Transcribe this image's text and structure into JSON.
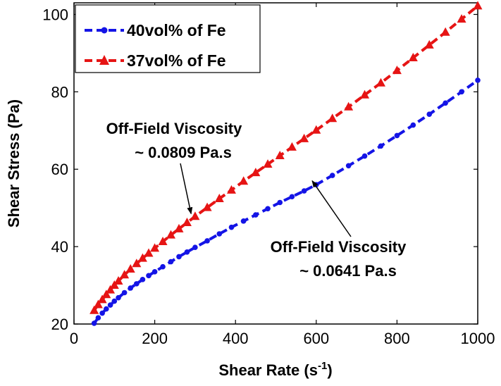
{
  "chart_data": {
    "type": "line",
    "title": "",
    "xlabel": "Shear Rate (s",
    "xlabel_sup": "-1",
    "xlabel_end": ")",
    "ylabel": "Shear Stress (Pa)",
    "xlim": [
      0,
      1000
    ],
    "ylim": [
      20,
      103
    ],
    "xticks": [
      "0",
      "200",
      "400",
      "600",
      "800",
      "1000"
    ],
    "yticks": [
      "20",
      "40",
      "60",
      "80",
      "100"
    ],
    "grid": false,
    "legend_position": "top-left",
    "series": [
      {
        "name": "40vol% of Fe",
        "color": "#1414e6",
        "marker": "dot",
        "x": [
          50,
          60,
          70,
          80,
          90,
          100,
          110,
          125,
          140,
          155,
          170,
          185,
          200,
          220,
          240,
          260,
          280,
          300,
          330,
          360,
          390,
          420,
          450,
          480,
          510,
          540,
          570,
          600,
          640,
          680,
          720,
          760,
          800,
          840,
          880,
          920,
          960,
          1000
        ],
        "values": [
          20.2,
          21.6,
          22.8,
          23.9,
          24.9,
          25.9,
          26.8,
          28.1,
          29.3,
          30.4,
          31.5,
          32.5,
          33.5,
          34.8,
          36.1,
          37.4,
          38.6,
          39.8,
          41.5,
          43.3,
          45.0,
          46.6,
          48.2,
          49.8,
          51.4,
          52.9,
          54.4,
          56.0,
          58.4,
          60.9,
          63.4,
          66.0,
          68.7,
          71.4,
          74.2,
          77.1,
          80.0,
          83.0
        ]
      },
      {
        "name": "37vol% of Fe",
        "color": "#e61414",
        "marker": "triangle",
        "x": [
          50,
          60,
          70,
          80,
          90,
          100,
          110,
          125,
          140,
          155,
          170,
          185,
          200,
          220,
          240,
          260,
          280,
          300,
          330,
          360,
          390,
          420,
          450,
          480,
          510,
          540,
          570,
          600,
          640,
          680,
          720,
          760,
          800,
          840,
          880,
          920,
          960,
          1000
        ],
        "values": [
          23.5,
          25.0,
          26.3,
          27.6,
          28.8,
          30.0,
          31.1,
          32.7,
          34.2,
          35.6,
          37.0,
          38.3,
          39.6,
          41.3,
          43.0,
          44.6,
          46.2,
          47.8,
          50.1,
          52.4,
          54.6,
          56.9,
          59.1,
          61.3,
          63.5,
          65.7,
          67.9,
          70.1,
          73.1,
          76.1,
          79.2,
          82.3,
          85.5,
          88.8,
          92.1,
          95.4,
          98.8,
          102.2
        ]
      }
    ],
    "annotations": [
      {
        "line1": "Off-Field Viscosity",
        "line2": "~ 0.0809 Pa.s",
        "target_x": 290,
        "target_y": 48.5
      },
      {
        "line1": "Off-Field Viscosity",
        "line2": "~ 0.0641 Pa.s",
        "target_x": 590,
        "target_y": 57.0
      }
    ]
  }
}
